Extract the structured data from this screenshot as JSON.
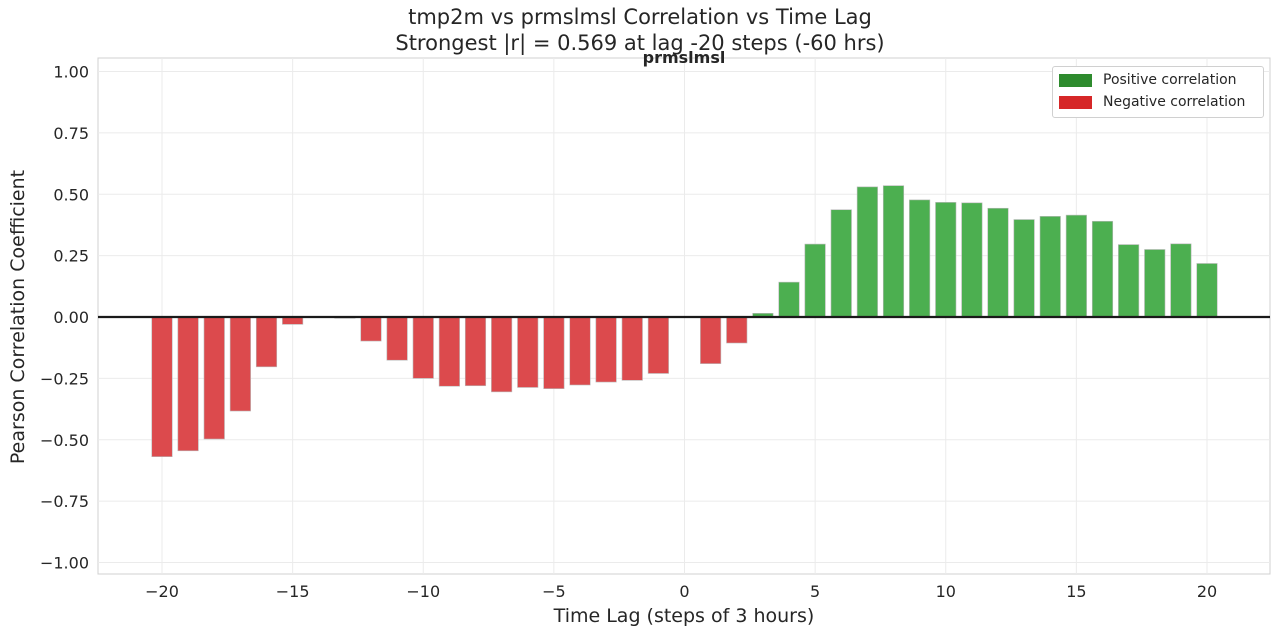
{
  "title": {
    "line1": "tmp2m vs prmslmsl Correlation vs Time Lag",
    "line2": "Strongest |r| = 0.569 at lag -20 steps (-60 hrs)",
    "subtitle": "prmslmsl"
  },
  "legend": {
    "items": [
      {
        "label": "Positive correlation",
        "color": "#2e8b2e"
      },
      {
        "label": "Negative correlation",
        "color": "#d62728"
      }
    ]
  },
  "colors": {
    "positive_bar": "#4caf50",
    "negative_bar": "#dc4a4d",
    "zero_line": "#1a1a1a",
    "grid": "#ebebeb"
  },
  "chart_data": {
    "type": "bar",
    "title": "tmp2m vs prmslmsl Correlation vs Time Lag\nStrongest |r| = 0.569 at lag -20 steps (-60 hrs)",
    "subtitle": "prmslmsl",
    "xlabel": "Time Lag (steps of 3 hours)",
    "ylabel": "Pearson Correlation Coefficient",
    "xlim": [
      -22,
      22
    ],
    "ylim": [
      -1.05,
      1.05
    ],
    "xticks": [
      -20,
      -15,
      -10,
      -5,
      0,
      5,
      10,
      15,
      20
    ],
    "xtick_labels": [
      "−20",
      "−15",
      "−10",
      "−5",
      "0",
      "5",
      "10",
      "15",
      "20"
    ],
    "yticks": [
      -1.0,
      -0.75,
      -0.5,
      -0.25,
      0.0,
      0.25,
      0.5,
      0.75,
      1.0
    ],
    "ytick_labels": [
      "−1.00",
      "−0.75",
      "−0.50",
      "−0.25",
      "0.00",
      "0.25",
      "0.50",
      "0.75",
      "1.00"
    ],
    "grid": true,
    "legend_position": "upper right",
    "x": [
      -20,
      -19,
      -18,
      -17,
      -16,
      -15,
      -14,
      -13,
      -12,
      -11,
      -10,
      -9,
      -8,
      -7,
      -6,
      -5,
      -4,
      -3,
      -2,
      -1,
      0,
      1,
      2,
      3,
      4,
      5,
      6,
      7,
      8,
      9,
      10,
      11,
      12,
      13,
      14,
      15,
      16,
      17,
      18,
      19,
      20
    ],
    "values": [
      -0.569,
      -0.545,
      -0.497,
      -0.383,
      -0.203,
      -0.03,
      0.0,
      -0.005,
      -0.098,
      -0.176,
      -0.25,
      -0.282,
      -0.28,
      -0.305,
      -0.287,
      -0.292,
      -0.277,
      -0.265,
      -0.258,
      -0.23,
      0.0,
      -0.19,
      -0.106,
      0.015,
      0.142,
      0.297,
      0.437,
      0.53,
      0.535,
      0.477,
      0.467,
      0.465,
      0.443,
      0.397,
      0.41,
      0.415,
      0.39,
      0.295,
      0.275,
      0.298,
      0.218
    ]
  }
}
